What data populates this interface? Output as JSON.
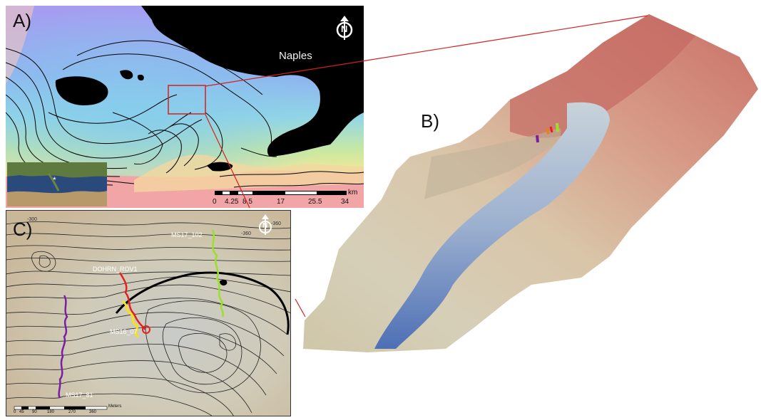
{
  "panels": {
    "a": {
      "label": "A)",
      "city_label": "Naples",
      "north_symbol": "N",
      "scale": {
        "unit": "km",
        "ticks": [
          "0",
          "4.25",
          "8.5",
          "17",
          "25.5",
          "34"
        ]
      }
    },
    "b": {
      "label": "B)"
    },
    "c": {
      "label": "C)",
      "north_symbol": "N",
      "track_labels": {
        "ms17_102": "MS17_102",
        "dohrn_rov1": "DOHRN_ROV1",
        "ms16_07": "MS16_07",
        "ms17_81": "MS17_81"
      },
      "contour_labels": [
        "-300",
        "-360",
        "-360"
      ],
      "scale": {
        "unit": "Meters",
        "ticks": [
          "0",
          "45",
          "90",
          "180",
          "270",
          "360"
        ]
      }
    }
  },
  "colors": {
    "land": "#000000",
    "deep_water": "#8f9ff5",
    "shallow_water": "#f3a3a3",
    "inset_box": "#d42020",
    "track_purple": "#7b1fa2",
    "track_red": "#e32020",
    "track_yellow": "#f5e31a",
    "track_green": "#9be02a"
  }
}
